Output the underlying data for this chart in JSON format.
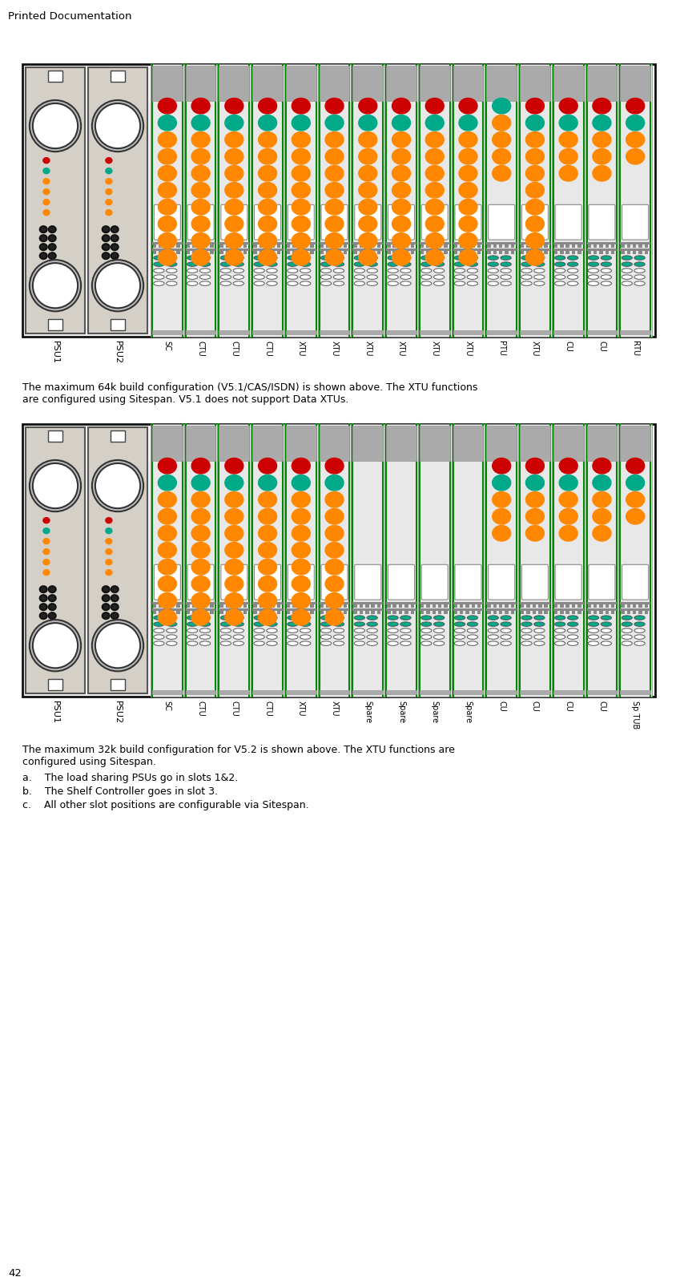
{
  "page_title": "Printed Documentation",
  "page_number": "42",
  "bg_color": "#ffffff",
  "shelf_bg": "#d4d0c8",
  "shelf_border": "#111111",
  "green_line": "#008800",
  "card_bg": "#e8e8e8",
  "diagram1_caption_line1": "The maximum 64k build configuration (V5.1/CAS/ISDN) is shown above. The XTU functions",
  "diagram1_caption_line2": "are configured using Sitespan. V5.1 does not support Data XTUs.",
  "diagram1_labels": [
    "PSU1",
    "PSU2",
    "SC",
    "CTU",
    "CTU",
    "CTU",
    "XTU",
    "XTU",
    "XTU",
    "XTU",
    "XTU",
    "XTU",
    "PTU",
    "XTU",
    "CU",
    "CU",
    "RTU"
  ],
  "diagram2_caption_line1": "The maximum 32k build configuration for V5.2 is shown above. The XTU functions are",
  "diagram2_caption_line2": "configured using Sitespan.",
  "diagram2_labels": [
    "PSU1",
    "PSU2",
    "SC",
    "CTU",
    "CTU",
    "CTU",
    "XTU",
    "XTU",
    "Spare",
    "Spare",
    "Spare",
    "Spare",
    "CU",
    "CU",
    "CU",
    "CU",
    "Sp TUB"
  ],
  "diagram2_notes": [
    "a.    The load sharing PSUs go in slots 1&2.",
    "b.    The Shelf Controller goes in slot 3.",
    "c.    All other slot positions are configurable via Sitespan."
  ],
  "led_dot_colors": {
    "SC": [
      [
        "#cc0000",
        1
      ],
      [
        "#00aa88",
        1
      ],
      [
        "#ff8800",
        2
      ],
      [
        "#ff8800",
        2
      ],
      [
        "#ff8800",
        2
      ],
      [
        "#ff8800",
        2
      ]
    ],
    "CTU": [
      [
        "#cc0000",
        1
      ],
      [
        "#00aa88",
        1
      ],
      [
        "#ff8800",
        2
      ],
      [
        "#ff8800",
        2
      ],
      [
        "#ff8800",
        2
      ],
      [
        "#ff8800",
        2
      ]
    ],
    "XTU": [
      [
        "#cc0000",
        1
      ],
      [
        "#00aa88",
        1
      ],
      [
        "#ff8800",
        2
      ],
      [
        "#ff8800",
        2
      ],
      [
        "#ff8800",
        2
      ],
      [
        "#ff8800",
        2
      ]
    ],
    "PTU": [
      [
        "#00aa88",
        1
      ],
      [
        "#ff8800",
        2
      ],
      [
        "#ff8800",
        2
      ]
    ],
    "CU": [
      [
        "#cc0000",
        1
      ],
      [
        "#00aa88",
        1
      ],
      [
        "#ff8800",
        2
      ],
      [
        "#ff8800",
        1
      ]
    ],
    "RTU": [
      [
        "#cc0000",
        1
      ],
      [
        "#00aa88",
        1
      ],
      [
        "#ff8800",
        2
      ]
    ],
    "Spare": [],
    "Sp TUB": [
      [
        "#cc0000",
        1
      ],
      [
        "#00aa88",
        1
      ],
      [
        "#ff8800",
        2
      ]
    ]
  }
}
